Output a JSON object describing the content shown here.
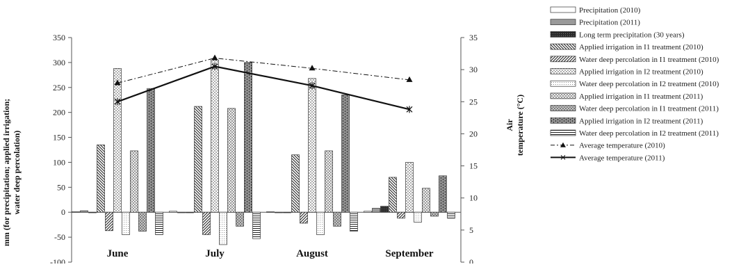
{
  "chart_data": {
    "type": "bar",
    "categories": [
      "June",
      "July",
      "August",
      "September"
    ],
    "ylabel_left": "mm (for precipitation; applied irrigation; water deep percolation)",
    "ylabel_right": "Air temperature (°C)",
    "ylim_left": [
      -100,
      350
    ],
    "yticks_left": [
      "-100",
      "-50",
      "0",
      "50",
      "100",
      "150",
      "200",
      "250",
      "300",
      "350"
    ],
    "ylim_right": [
      0,
      35
    ],
    "yticks_right": [
      "0",
      "5",
      "10",
      "15",
      "20",
      "25",
      "30",
      "35"
    ],
    "legend_position": "right",
    "series": [
      {
        "name": "Precipitation (2010)",
        "values": [
          1,
          2,
          1,
          2
        ],
        "pattern": "empty"
      },
      {
        "name": "Precipitation (2011)",
        "values": [
          3,
          0,
          0,
          8
        ],
        "pattern": "gray"
      },
      {
        "name": "Long term precipitation (30 years)",
        "values": [
          0,
          0,
          0,
          12
        ],
        "pattern": "dark"
      },
      {
        "name": "Applied irrigation in I1 treatment (2010)",
        "values": [
          135,
          212,
          115,
          70
        ],
        "pattern": "diag-back"
      },
      {
        "name": "Water deep percolation in I1 treatment (2010)",
        "values": [
          -37,
          -45,
          -22,
          -12
        ],
        "pattern": "diag-fwd"
      },
      {
        "name": "Applied irrigation in I2 treatment (2010)",
        "values": [
          288,
          305,
          268,
          100
        ],
        "pattern": "dots"
      },
      {
        "name": "Water deep percolation in I2 treatment (2010)",
        "values": [
          -45,
          -65,
          -45,
          -20
        ],
        "pattern": "fine-dots"
      },
      {
        "name": "Applied irrigation in I1 treatment (2011)",
        "values": [
          123,
          208,
          123,
          48
        ],
        "pattern": "cross"
      },
      {
        "name": "Water deep percolation in I1 treatment (2011)",
        "values": [
          -38,
          -28,
          -28,
          -8
        ],
        "pattern": "diamond"
      },
      {
        "name": "Applied irrigation in I2 treatment (2011)",
        "values": [
          248,
          300,
          235,
          73
        ],
        "pattern": "bricks"
      },
      {
        "name": "Water deep percolation in I2 treatment (2011)",
        "values": [
          -45,
          -53,
          -38,
          -12
        ],
        "pattern": "hatch-grid"
      }
    ],
    "lines": [
      {
        "name": "Average temperature (2010)",
        "values": [
          27.9,
          31.8,
          30.2,
          28.4
        ],
        "style": "dash-dot",
        "marker": "triangle"
      },
      {
        "name": "Average temperature (2011)",
        "values": [
          25.0,
          30.5,
          27.5,
          23.8
        ],
        "style": "solid",
        "marker": "star"
      }
    ]
  }
}
